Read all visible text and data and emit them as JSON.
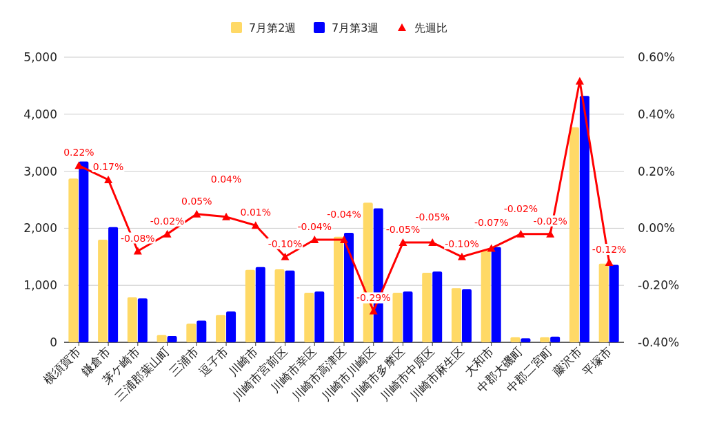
{
  "chart_data": {
    "type": "bar",
    "categories": [
      "横須賀市",
      "鎌倉市",
      "茅ケ崎市",
      "三浦郡葉山町",
      "三浦市",
      "逗子市",
      "川崎市",
      "川崎市宮前区",
      "川崎市幸区",
      "川崎市高津区",
      "川崎市川崎区",
      "川崎市多摩区",
      "川崎市中原区",
      "川崎市麻生区",
      "大和市",
      "中郡大磯町",
      "中郡二宮町",
      "藤沢市",
      "平塚市"
    ],
    "series": [
      {
        "name": "7月第2週",
        "color": "#ffd966",
        "values": [
          2870,
          1800,
          790,
          130,
          330,
          480,
          1270,
          1280,
          870,
          1850,
          2450,
          870,
          1220,
          950,
          1620,
          90,
          90,
          3770,
          1380
        ]
      },
      {
        "name": "7月第3週",
        "color": "#0000ff",
        "values": [
          3170,
          2020,
          770,
          110,
          380,
          540,
          1320,
          1260,
          890,
          1920,
          2350,
          890,
          1240,
          930,
          1670,
          70,
          100,
          4320,
          1360
        ]
      },
      {
        "name": "先週比",
        "type": "line",
        "axis": "y2",
        "color": "#ff0000",
        "values": [
          0.22,
          0.17,
          -0.08,
          -0.02,
          0.05,
          0.04,
          0.01,
          -0.1,
          -0.04,
          -0.04,
          -0.29,
          -0.05,
          -0.05,
          -0.1,
          -0.07,
          -0.02,
          -0.02,
          0.516,
          -0.12
        ],
        "value_labels": [
          "0.22%",
          "0.17%",
          "-0.08%",
          "-0.02%",
          "0.05%",
          "0.04%",
          "0.01%",
          "-0.10%",
          "-0.04%",
          "-0.04%",
          "-0.29%",
          "-0.05%",
          "-0.05%",
          "-0.10%",
          "-0.07%",
          "-0.02%",
          "-0.02%",
          null,
          "-0.12%"
        ]
      }
    ],
    "ylim": [
      0,
      5000
    ],
    "yticks": [
      0,
      {
        "value": 1000,
        "label": "1,000"
      },
      {
        "value": 2000,
        "label": "2,000"
      },
      {
        "value": 3000,
        "label": "3,000"
      },
      {
        "value": 4000,
        "label": "4,000"
      },
      {
        "value": 5000,
        "label": "5,000"
      }
    ],
    "y2lim": [
      -0.4,
      0.6
    ],
    "y2ticks": [
      {
        "value": -0.4,
        "label": "-0.40%"
      },
      {
        "value": -0.2,
        "label": "-0.20%"
      },
      {
        "value": 0,
        "label": "0.00%"
      },
      {
        "value": 0.2,
        "label": "0.20%"
      },
      {
        "value": 0.4,
        "label": "0.40%"
      },
      {
        "value": 0.6,
        "label": "0.60%"
      }
    ],
    "grid": "y",
    "legend": "top",
    "marker": "triangle"
  }
}
